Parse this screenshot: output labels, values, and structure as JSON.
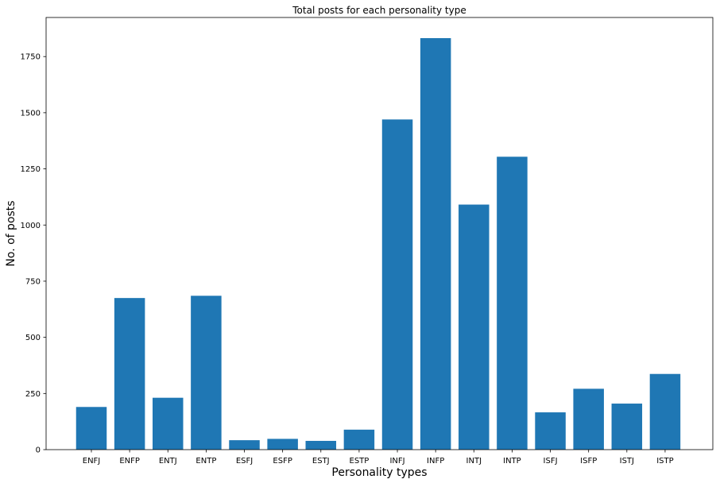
{
  "chart_data": {
    "type": "bar",
    "title": "Total posts for each personality type",
    "xlabel": "Personality types",
    "ylabel": "No. of posts",
    "categories": [
      "ENFJ",
      "ENFP",
      "ENTJ",
      "ENTP",
      "ESFJ",
      "ESFP",
      "ESTJ",
      "ESTP",
      "INFJ",
      "INFP",
      "INTJ",
      "INTP",
      "ISFJ",
      "ISFP",
      "ISTJ",
      "ISTP"
    ],
    "values": [
      190,
      675,
      231,
      685,
      42,
      48,
      39,
      89,
      1470,
      1832,
      1091,
      1304,
      166,
      271,
      205,
      337
    ],
    "yticks": [
      0,
      250,
      500,
      750,
      1000,
      1250,
      1500,
      1750
    ],
    "ylim": [
      0,
      1924
    ],
    "grid": false,
    "bar_color": "#1f77b4"
  }
}
